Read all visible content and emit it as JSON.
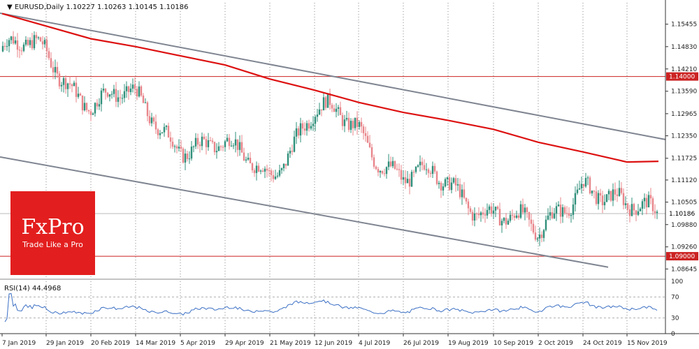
{
  "header": {
    "symbol": "EURUSD,Daily",
    "ohlc": "1.10227 1.10263 1.10145 1.10186"
  },
  "rsi_header": "RSI(14) 44.4968",
  "logo": {
    "brand": "FxPro",
    "tagline": "Trade Like a Pro"
  },
  "price_axis": {
    "ticks": [
      "1.15455",
      "1.14830",
      "1.14210",
      "1.13590",
      "1.12965",
      "1.12350",
      "1.11725",
      "1.11120",
      "1.10505",
      "1.09880",
      "1.09260",
      "1.08645"
    ],
    "current": "1.10186",
    "level_high": "1.14000",
    "level_low": "1.09000"
  },
  "rsi_axis": {
    "ticks": [
      "100",
      "70",
      "30",
      "0"
    ]
  },
  "time_axis": [
    "7 Jan 2019",
    "29 Jan 2019",
    "20 Feb 2019",
    "14 Mar 2019",
    "5 Apr 2019",
    "29 Apr 2019",
    "21 May 2019",
    "12 Jun 2019",
    "4 Jul 2019",
    "26 Jul 2019",
    "19 Aug 2019",
    "10 Sep 2019",
    "2 Oct 2019",
    "24 Oct 2019",
    "15 Nov 2019"
  ],
  "colors": {
    "bull": "#2f8f7a",
    "bear": "#e8858a",
    "ma": "#dd1111",
    "channel": "#7f8591",
    "level": "#cc2222",
    "rsi": "#3b6fc4",
    "logo": "#e31e1e"
  },
  "chart_data": {
    "type": "candlestick",
    "symbol": "EURUSD",
    "timeframe": "Daily",
    "last_ohlc": {
      "open": 1.10227,
      "high": 1.10263,
      "low": 1.10145,
      "close": 1.10186
    },
    "price_range": [
      1.0838,
      1.1605
    ],
    "horizontal_levels": [
      1.14,
      1.09
    ],
    "anchors": [
      [
        "7 Jan 2019",
        1.147
      ],
      [
        "29 Jan 2019",
        1.146
      ],
      [
        "20 Feb 2019",
        1.134
      ],
      [
        "14 Mar 2019",
        1.132
      ],
      [
        "5 Apr 2019",
        1.123
      ],
      [
        "29 Apr 2019",
        1.118
      ],
      [
        "21 May 2019",
        1.115
      ],
      [
        "12 Jun 2019",
        1.129
      ],
      [
        "4 Jul 2019",
        1.126
      ],
      [
        "26 Jul 2019",
        1.112
      ],
      [
        "19 Aug 2019",
        1.109
      ],
      [
        "10 Sep 2019",
        1.104
      ],
      [
        "2 Oct 2019",
        1.094
      ],
      [
        "24 Oct 2019",
        1.113
      ],
      [
        "15 Nov 2019",
        1.101
      ]
    ],
    "moving_average": [
      [
        "7 Jan 2019",
        1.1575
      ],
      [
        "20 Feb 2019",
        1.1505
      ],
      [
        "14 Mar 2019",
        1.1483
      ],
      [
        "29 Apr 2019",
        1.1432
      ],
      [
        "21 May 2019",
        1.1393
      ],
      [
        "12 Jun 2019",
        1.1362
      ],
      [
        "4 Jul 2019",
        1.1328
      ],
      [
        "26 Jul 2019",
        1.13
      ],
      [
        "19 Aug 2019",
        1.1278
      ],
      [
        "10 Sep 2019",
        1.1253
      ],
      [
        "2 Oct 2019",
        1.1217
      ],
      [
        "24 Oct 2019",
        1.119
      ],
      [
        "15 Nov 2019",
        1.1162
      ]
    ],
    "channel_upper": [
      [
        "7 Jan 2019",
        1.1575
      ],
      [
        "15 Nov 2019",
        1.1245
      ]
    ],
    "channel_lower": [
      [
        "7 Jan 2019",
        1.1175
      ],
      [
        "15 Nov 2019",
        1.086
      ]
    ],
    "rsi": {
      "period": 14,
      "last": 44.4968,
      "levels": [
        70,
        30
      ],
      "ylim": [
        0,
        100
      ]
    }
  }
}
